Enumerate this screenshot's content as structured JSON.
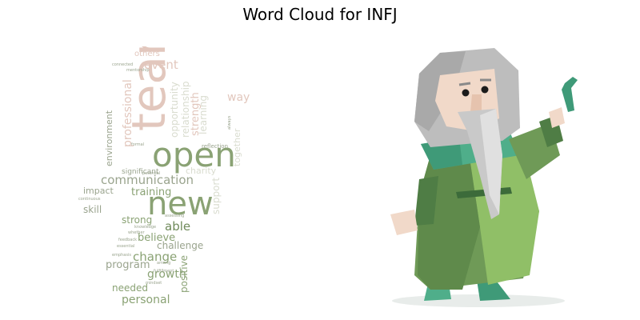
{
  "title": "Word Cloud for INFJ",
  "colors": {
    "cloud_green": "#8aa274",
    "cloud_dark_green": "#6f8a5a",
    "cloud_gray_green": "#9aa48e",
    "cloud_pink": "#e2c7bd",
    "cloud_light": "#d9dccf",
    "robe_green": "#6f9a57",
    "robe_dark": "#4f7d45",
    "robe_light": "#90bf67",
    "teal": "#4fae8a",
    "beard_gray": "#c9c9c9",
    "skin": "#f1d9c9"
  },
  "word_cloud": {
    "words": [
      {
        "text": "team",
        "color": "#e2c7bd"
      },
      {
        "text": "open",
        "color": "#8aa274"
      },
      {
        "text": "new",
        "color": "#8aa274"
      },
      {
        "text": "communication",
        "color": "#9aa48e"
      },
      {
        "text": "training",
        "color": "#8aa274"
      },
      {
        "text": "professional",
        "color": "#e2c7bd"
      },
      {
        "text": "environment",
        "color": "#9aa48e"
      },
      {
        "text": "event",
        "color": "#e2c7bd"
      },
      {
        "text": "others",
        "color": "#e2c7bd"
      },
      {
        "text": "strong",
        "color": "#8aa274"
      },
      {
        "text": "able",
        "color": "#6f8a5a"
      },
      {
        "text": "believe",
        "color": "#8aa274"
      },
      {
        "text": "challenge",
        "color": "#9aa48e"
      },
      {
        "text": "change",
        "color": "#8aa274"
      },
      {
        "text": "program",
        "color": "#9aa48e"
      },
      {
        "text": "growth",
        "color": "#8aa274"
      },
      {
        "text": "positive",
        "color": "#8aa274"
      },
      {
        "text": "personal",
        "color": "#8aa274"
      },
      {
        "text": "needed",
        "color": "#8aa274"
      },
      {
        "text": "impact",
        "color": "#9aa48e"
      },
      {
        "text": "skill",
        "color": "#9aa48e"
      },
      {
        "text": "charity",
        "color": "#d9dccf"
      },
      {
        "text": "significant",
        "color": "#9aa48e"
      },
      {
        "text": "together",
        "color": "#d9dccf"
      },
      {
        "text": "way",
        "color": "#e2c7bd"
      },
      {
        "text": "support",
        "color": "#d9dccf"
      },
      {
        "text": "learning",
        "color": "#d9dccf"
      },
      {
        "text": "strength",
        "color": "#e2c7bd"
      },
      {
        "text": "relationship",
        "color": "#d9dccf"
      },
      {
        "text": "opportunity",
        "color": "#d9dccf"
      },
      {
        "text": "reflection",
        "color": "#9aa48e"
      },
      {
        "text": "connected",
        "color": "#9aa48e"
      },
      {
        "text": "mentorship",
        "color": "#9aa48e"
      },
      {
        "text": "knowledge",
        "color": "#9aa48e"
      },
      {
        "text": "feedback",
        "color": "#9aa48e"
      },
      {
        "text": "whether",
        "color": "#9aa48e"
      },
      {
        "text": "essential",
        "color": "#9aa48e"
      },
      {
        "text": "emphasis",
        "color": "#9aa48e"
      },
      {
        "text": "fulfillment",
        "color": "#9aa48e"
      },
      {
        "text": "mindset",
        "color": "#9aa48e"
      },
      {
        "text": "assessing",
        "color": "#9aa48e"
      },
      {
        "text": "formal",
        "color": "#9aa48e"
      },
      {
        "text": "potential",
        "color": "#9aa48e"
      },
      {
        "text": "continuous",
        "color": "#9aa48e"
      },
      {
        "text": "always",
        "color": "#9aa48e"
      },
      {
        "text": "among",
        "color": "#9aa48e"
      }
    ]
  },
  "illustration": {
    "subject": "old-sage-character",
    "icons": [
      "wizard-illustration",
      "staff-icon"
    ]
  }
}
